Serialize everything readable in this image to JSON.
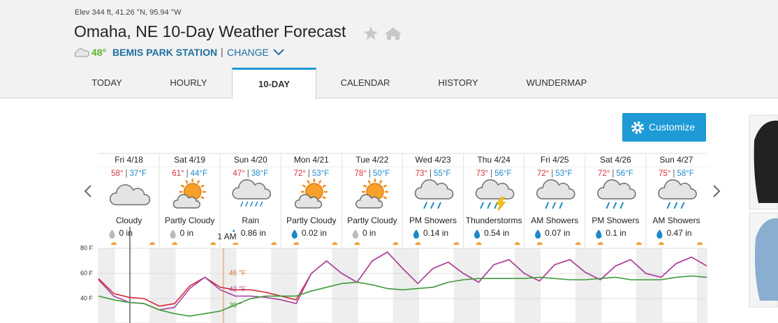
{
  "header": {
    "elevation": "Elev 344 ft, 41.26 °N, 95.94 °W",
    "title": "Omaha, NE 10-Day Weather Forecast",
    "current_temp": "48°",
    "station": "BEMIS PARK STATION",
    "separator": "|",
    "change": "CHANGE"
  },
  "tabs": [
    "TODAY",
    "HOURLY",
    "10-DAY",
    "CALENDAR",
    "HISTORY",
    "WUNDERMAP"
  ],
  "active_tab": 2,
  "customize": "Customize",
  "hi_lo_separator": "|",
  "days": [
    {
      "date": "Fri 4/18",
      "high": "58°",
      "low": "37°F",
      "icon": "cloudy",
      "condition": "Cloudy",
      "precip": "0 in"
    },
    {
      "date": "Sat 4/19",
      "high": "61°",
      "low": "44°F",
      "icon": "partly",
      "condition": "Partly Cloudy",
      "precip": "0 in"
    },
    {
      "date": "Sun 4/20",
      "high": "47°",
      "low": "38°F",
      "icon": "rain",
      "condition": "Rain",
      "precip": "0.86 in"
    },
    {
      "date": "Mon 4/21",
      "high": "72°",
      "low": "53°F",
      "icon": "partly",
      "condition": "Partly Cloudy",
      "precip": "0.02 in"
    },
    {
      "date": "Tue 4/22",
      "high": "78°",
      "low": "50°F",
      "icon": "partly",
      "condition": "Partly Cloudy",
      "precip": "0 in"
    },
    {
      "date": "Wed 4/23",
      "high": "73°",
      "low": "55°F",
      "icon": "showers",
      "condition": "PM Showers",
      "precip": "0.14 in"
    },
    {
      "date": "Thu 4/24",
      "high": "73°",
      "low": "56°F",
      "icon": "thunder",
      "condition": "Thunderstorms",
      "precip": "0.54 in"
    },
    {
      "date": "Fri 4/25",
      "high": "72°",
      "low": "53°F",
      "icon": "showers",
      "condition": "AM Showers",
      "precip": "0.07 in"
    },
    {
      "date": "Sat 4/26",
      "high": "72°",
      "low": "56°F",
      "icon": "showers",
      "condition": "PM Showers",
      "precip": "0.1 in"
    },
    {
      "date": "Sun 4/27",
      "high": "75°",
      "low": "58°F",
      "icon": "showers",
      "condition": "AM Showers",
      "precip": "0.47 in"
    }
  ],
  "chart_data": {
    "type": "line",
    "x": [
      0,
      6,
      12,
      18,
      24,
      30,
      36,
      42,
      48,
      54,
      60,
      66,
      72,
      78,
      84,
      90,
      96,
      102,
      108,
      114,
      120,
      126,
      132,
      138,
      144,
      150,
      156,
      162,
      168,
      174,
      180,
      186,
      192,
      198,
      204,
      210,
      216,
      222,
      228,
      234,
      240
    ],
    "xlim": [
      0,
      240
    ],
    "ylim": [
      22,
      80
    ],
    "yticks": [
      {
        "value": 80,
        "label": "80 F"
      },
      {
        "value": 60,
        "label": "60 F"
      },
      {
        "value": 40,
        "label": "40 F"
      }
    ],
    "grid": true,
    "series": [
      {
        "color": "#d6263b",
        "values": [
          56,
          44,
          41,
          40,
          34,
          36,
          50,
          57,
          49,
          47,
          47,
          45,
          42,
          39,
          60,
          70,
          60,
          53,
          70,
          77,
          64,
          52,
          64,
          69,
          60,
          53,
          67,
          71,
          60,
          54,
          67,
          71,
          61,
          55,
          66,
          71,
          60,
          57,
          68,
          73,
          66
        ]
      },
      {
        "color": "#a845a0",
        "values": [
          55,
          42,
          37,
          36,
          31,
          33,
          48,
          57,
          47,
          42,
          42,
          41,
          39,
          36,
          60,
          70,
          60,
          53,
          70,
          77,
          64,
          52,
          64,
          69,
          60,
          53,
          67,
          71,
          60,
          54,
          67,
          71,
          61,
          55,
          66,
          71,
          60,
          57,
          68,
          73,
          66
        ]
      },
      {
        "color": "#3f9a3a",
        "values": [
          42,
          39,
          37,
          36,
          31,
          28,
          26,
          28,
          30,
          35,
          40,
          42,
          42,
          42,
          46,
          49,
          52,
          53,
          51,
          48,
          47,
          48,
          49,
          53,
          55,
          56,
          56,
          56,
          56,
          57,
          56,
          55,
          55,
          56,
          57,
          55,
          55,
          55,
          57,
          58,
          57
        ]
      }
    ],
    "annotations": [
      "1 AM",
      "46 °F",
      "42 °F",
      "30 °"
    ]
  }
}
